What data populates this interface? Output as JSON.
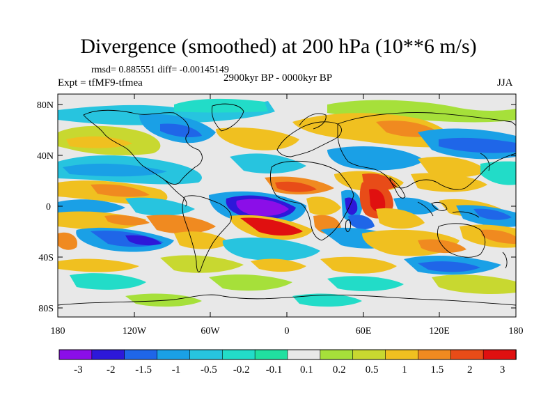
{
  "title": "Divergence (smoothed) at 200 hPa (10**6 m/s)",
  "stats": "rmsd= 0.885551 diff= -0.00145149",
  "experiment": "Expt = tfMF9-tfmea",
  "period": "2900kyr BP - 0000kyr BP",
  "season": "JJA",
  "lat_ticks": [
    "80N",
    "40N",
    "0",
    "40S",
    "80S"
  ],
  "lon_ticks": [
    "180",
    "120W",
    "60W",
    "0",
    "60E",
    "120E",
    "180"
  ],
  "colorbar": {
    "labels": [
      "-3",
      "-2",
      "-1.5",
      "-1",
      "-0.5",
      "-0.2",
      "-0.1",
      "0.1",
      "0.2",
      "0.5",
      "1",
      "1.5",
      "2",
      "3"
    ],
    "colors": [
      "#8b0ee8",
      "#2d18d9",
      "#1f66e8",
      "#1aa0e6",
      "#27c4df",
      "#22dcc8",
      "#20e0a0",
      "#e8e8e8",
      "#a6e03a",
      "#c8d830",
      "#f0c020",
      "#f08a20",
      "#e84c18",
      "#e01010"
    ]
  },
  "map_colors": {
    "background": "#e8e8e8",
    "coastline": "#000000"
  }
}
